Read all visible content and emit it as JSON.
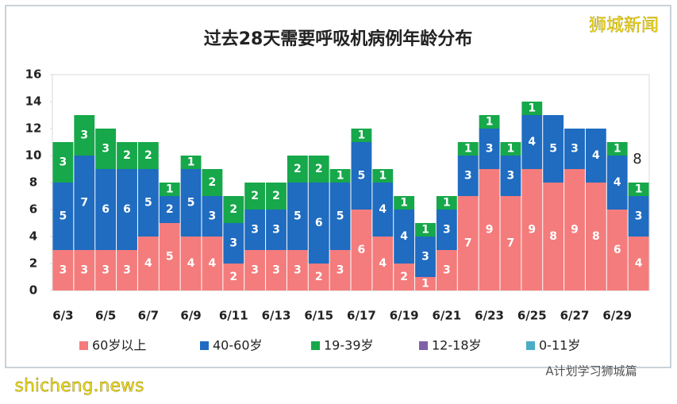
{
  "chart_data": {
    "type": "stacked-bar",
    "title": "过去28天需要呼吸机病例年龄分布",
    "categories": [
      "6/3",
      null,
      "6/5",
      null,
      "6/7",
      null,
      "6/9",
      null,
      "6/11",
      null,
      "6/13",
      null,
      "6/15",
      null,
      "6/17",
      null,
      "6/19",
      null,
      "6/21",
      null,
      "6/23",
      null,
      "6/25",
      null,
      "6/27",
      null,
      "6/29",
      null
    ],
    "series": [
      {
        "name": "60岁以上",
        "color": "#f47c7c",
        "values": [
          3,
          3,
          3,
          3,
          4,
          5,
          4,
          4,
          2,
          3,
          3,
          3,
          2,
          3,
          6,
          4,
          2,
          1,
          3,
          7,
          9,
          7,
          9,
          8,
          9,
          8,
          6,
          4
        ]
      },
      {
        "name": "40-60岁",
        "color": "#1f6cc1",
        "values": [
          5,
          7,
          6,
          6,
          5,
          2,
          5,
          3,
          3,
          3,
          3,
          5,
          6,
          5,
          5,
          4,
          4,
          3,
          3,
          3,
          3,
          3,
          4,
          5,
          3,
          4,
          4,
          3
        ]
      },
      {
        "name": "19-39岁",
        "color": "#16a84a",
        "values": [
          3,
          3,
          3,
          2,
          2,
          1,
          1,
          2,
          2,
          2,
          2,
          2,
          2,
          1,
          1,
          1,
          1,
          1,
          1,
          1,
          1,
          1,
          1,
          0,
          0,
          0,
          1,
          1
        ]
      },
      {
        "name": "12-18岁",
        "color": "#8060a8",
        "values": [
          0,
          0,
          0,
          0,
          0,
          0,
          0,
          0,
          0,
          0,
          0,
          0,
          0,
          0,
          0,
          0,
          0,
          0,
          0,
          0,
          0,
          0,
          0,
          0,
          0,
          0,
          0,
          0
        ]
      },
      {
        "name": "0-11岁",
        "color": "#4bacc6",
        "values": [
          0,
          0,
          0,
          0,
          0,
          0,
          0,
          0,
          0,
          0,
          0,
          0,
          0,
          0,
          0,
          0,
          0,
          0,
          0,
          0,
          0,
          0,
          0,
          0,
          0,
          0,
          0,
          0
        ]
      }
    ],
    "ylim": [
      0,
      16
    ],
    "yticks": [
      0,
      2,
      4,
      6,
      8,
      10,
      12,
      14,
      16
    ],
    "annotation": "8",
    "watermark_top": "狮城新闻",
    "watermark_bottom_right": "A计划学习狮城篇",
    "watermark_bottom_left": "shicheng.news"
  }
}
